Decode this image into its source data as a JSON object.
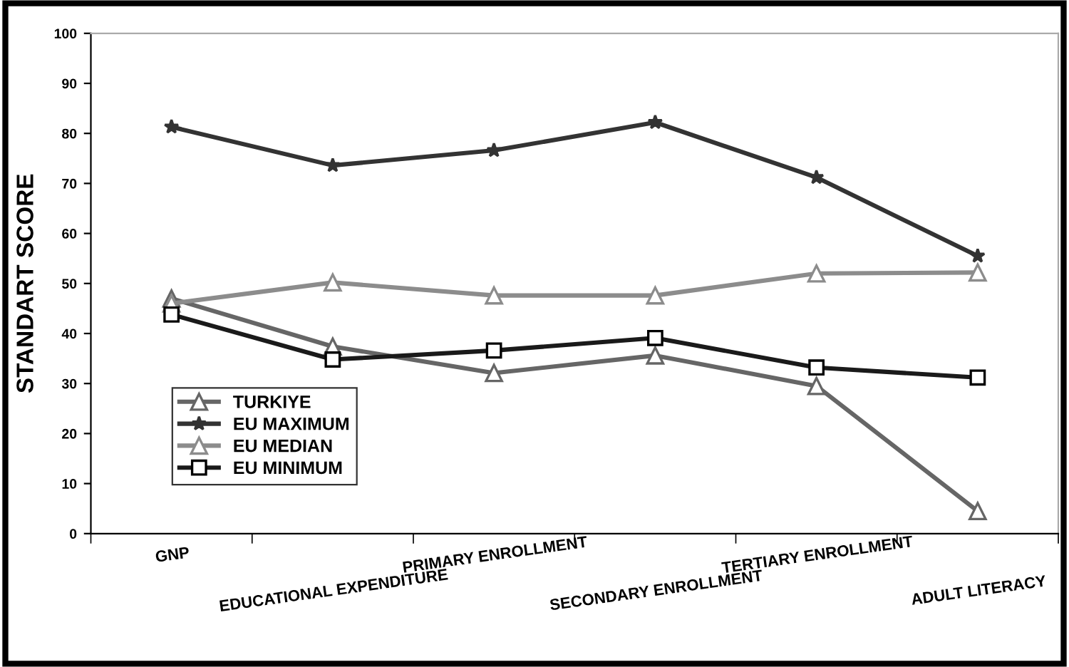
{
  "chart_data": {
    "type": "line",
    "ylabel": "STANDART SCORE",
    "categories": [
      "GNP",
      "EDUCATIONAL EXPENDITURE",
      "PRIMARY ENROLLMENT",
      "SECONDARY ENROLLMENT",
      "TERTIARY ENROLLMENT",
      "ADULT LITERACY"
    ],
    "series": [
      {
        "name": "TURKIYE",
        "color": "#666666",
        "marker": "triangle",
        "values": [
          47,
          37.4,
          32.1,
          35.6,
          29.5,
          4.5
        ]
      },
      {
        "name": "EU MAXIMUM",
        "color": "#333333",
        "marker": "star",
        "values": [
          81.3,
          73.6,
          76.6,
          82.2,
          71.2,
          55.5
        ]
      },
      {
        "name": "EU MEDIAN",
        "color": "#8c8c8c",
        "marker": "triangle",
        "values": [
          46,
          50.2,
          47.6,
          47.6,
          52,
          52.2
        ]
      },
      {
        "name": "EU MINIMUM",
        "color": "#1a1a1a",
        "marker": "square",
        "values": [
          43.8,
          34.8,
          36.6,
          39.1,
          33.2,
          31.2
        ]
      }
    ],
    "ylim": [
      0,
      100
    ],
    "yticks": [
      0,
      10,
      20,
      30,
      40,
      50,
      60,
      70,
      80,
      90,
      100
    ],
    "grid": false,
    "legend": "bottom left",
    "line_style": "solid"
  }
}
